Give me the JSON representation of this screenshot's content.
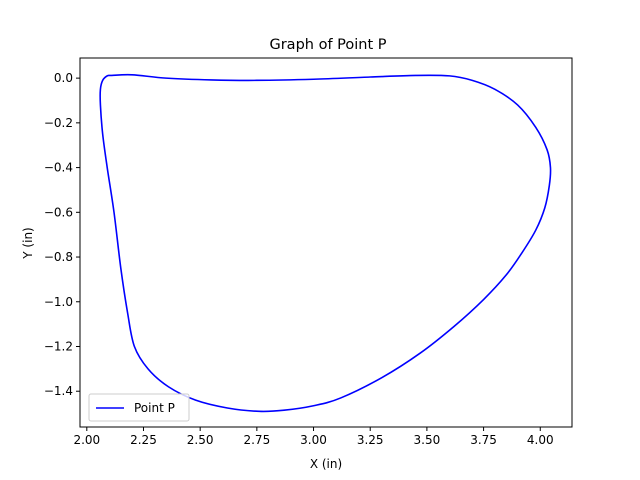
{
  "chart_data": {
    "type": "line",
    "title": "Graph of Point P",
    "xlabel": "X (in)",
    "ylabel": "Y (in)",
    "xlim": [
      1.97,
      4.14
    ],
    "ylim": [
      -1.56,
      0.09
    ],
    "xticks": [
      2.0,
      2.25,
      2.5,
      2.75,
      3.0,
      3.25,
      3.5,
      3.75,
      4.0
    ],
    "xtick_labels": [
      "2.00",
      "2.25",
      "2.50",
      "2.75",
      "3.00",
      "3.25",
      "3.50",
      "3.75",
      "4.00"
    ],
    "yticks": [
      0.0,
      -0.2,
      -0.4,
      -0.6,
      -0.8,
      -1.0,
      -1.2,
      -1.4
    ],
    "ytick_labels": [
      "0.0",
      "−0.2",
      "−0.4",
      "−0.6",
      "−0.8",
      "−1.0",
      "−1.2",
      "−1.4"
    ],
    "grid": false,
    "legend_position": "lower-left",
    "series": [
      {
        "name": "Point P",
        "color": "#0000ff",
        "closed": true,
        "points": [
          [
            2.11,
            0.012
          ],
          [
            2.2,
            0.015
          ],
          [
            2.35,
            0.0
          ],
          [
            2.55,
            -0.008
          ],
          [
            2.75,
            -0.01
          ],
          [
            3.0,
            -0.005
          ],
          [
            3.25,
            0.005
          ],
          [
            3.45,
            0.012
          ],
          [
            3.6,
            0.01
          ],
          [
            3.7,
            -0.01
          ],
          [
            3.8,
            -0.05
          ],
          [
            3.9,
            -0.12
          ],
          [
            3.98,
            -0.22
          ],
          [
            4.03,
            -0.32
          ],
          [
            4.045,
            -0.4
          ],
          [
            4.04,
            -0.48
          ],
          [
            4.02,
            -0.58
          ],
          [
            3.98,
            -0.68
          ],
          [
            3.92,
            -0.78
          ],
          [
            3.85,
            -0.88
          ],
          [
            3.75,
            -0.99
          ],
          [
            3.62,
            -1.11
          ],
          [
            3.47,
            -1.23
          ],
          [
            3.3,
            -1.34
          ],
          [
            3.12,
            -1.43
          ],
          [
            3.0,
            -1.465
          ],
          [
            2.87,
            -1.485
          ],
          [
            2.76,
            -1.49
          ],
          [
            2.62,
            -1.475
          ],
          [
            2.48,
            -1.44
          ],
          [
            2.36,
            -1.38
          ],
          [
            2.27,
            -1.3
          ],
          [
            2.21,
            -1.2
          ],
          [
            2.18,
            -1.05
          ],
          [
            2.15,
            -0.85
          ],
          [
            2.12,
            -0.6
          ],
          [
            2.09,
            -0.4
          ],
          [
            2.07,
            -0.25
          ],
          [
            2.06,
            -0.12
          ],
          [
            2.06,
            -0.05
          ],
          [
            2.07,
            -0.01
          ],
          [
            2.09,
            0.01
          ]
        ]
      }
    ]
  }
}
